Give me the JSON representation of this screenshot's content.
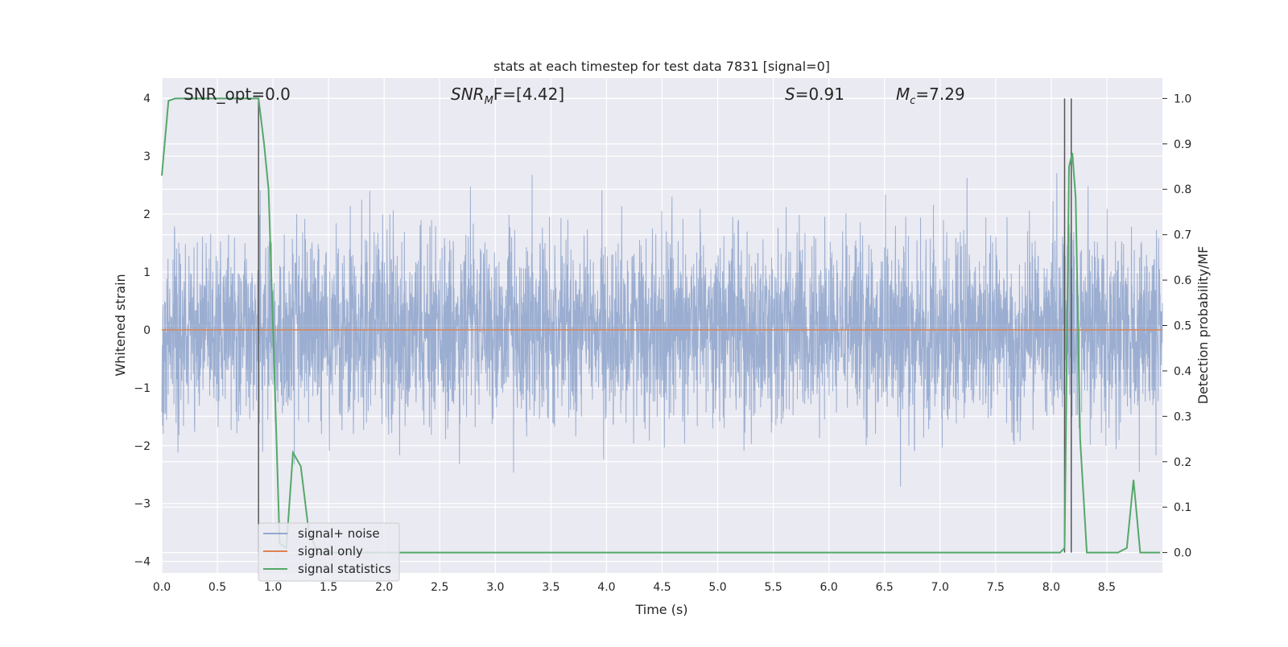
{
  "chart_data": {
    "type": "line",
    "title": "stats at each timestep for test data 7831 [signal=0]",
    "xlabel": "Time (s)",
    "ylabel_left": "Whitened strain",
    "ylabel_right": "Detection probability/MF",
    "xlim": [
      0.0,
      9.0
    ],
    "ylim_left": [
      -4.2,
      4.35
    ],
    "ylim_right": [
      -0.045,
      1.045
    ],
    "x_ticks": [
      0.0,
      0.5,
      1.0,
      1.5,
      2.0,
      2.5,
      3.0,
      3.5,
      4.0,
      4.5,
      5.0,
      5.5,
      6.0,
      6.5,
      7.0,
      7.5,
      8.0,
      8.5
    ],
    "x_tick_labels": [
      "0.0",
      "0.5",
      "1.0",
      "1.5",
      "2.0",
      "2.5",
      "3.0",
      "3.5",
      "4.0",
      "4.5",
      "5.0",
      "5.5",
      "6.0",
      "6.5",
      "7.0",
      "7.5",
      "8.0",
      "8.5"
    ],
    "y_left_ticks": [
      4,
      3,
      2,
      1,
      0,
      -1,
      -2,
      -3,
      -4
    ],
    "y_left_tick_labels": [
      "4",
      "3",
      "2",
      "1",
      "0",
      "−1",
      "−2",
      "−3",
      "−4"
    ],
    "y_right_ticks": [
      1.0,
      0.9,
      0.8,
      0.7,
      0.6,
      0.5,
      0.4,
      0.3,
      0.2,
      0.1,
      0.0
    ],
    "y_right_tick_labels": [
      "1.0",
      "0.9",
      "0.8",
      "0.7",
      "0.6",
      "0.5",
      "0.4",
      "0.3",
      "0.2",
      "0.1",
      "0.0"
    ],
    "grid": true,
    "legend_position": "lower-left",
    "annotations": {
      "snr_opt": "SNR_opt=0.0",
      "snr_mf_prefix": "SNR",
      "snr_mf_sub": "M",
      "snr_mf_suffix": "F=[4.42]",
      "s_var": "S",
      "s_val": "=0.91",
      "mc_var": "M",
      "mc_sub": "c",
      "mc_val": "=7.29"
    },
    "vertical_markers_x": [
      0.87,
      8.12,
      8.18
    ],
    "series": [
      {
        "name": "signal+ noise",
        "color": "#4c72b0",
        "axis": "left",
        "kind": "noise",
        "typical_amplitude": 1.5,
        "peak_min": -3.7,
        "peak_max": 3.9
      },
      {
        "name": "signal only",
        "color": "#dd8452",
        "axis": "left",
        "x": [
          0.0,
          9.0
        ],
        "y": [
          0.0,
          0.0
        ]
      },
      {
        "name": "signal statistics",
        "color": "#55a868",
        "axis": "right",
        "x": [
          0.0,
          0.06,
          0.12,
          0.2,
          0.3,
          0.5,
          0.7,
          0.87,
          0.92,
          0.96,
          1.0,
          1.06,
          1.12,
          1.18,
          1.25,
          1.32,
          1.4,
          2.0,
          3.0,
          4.0,
          5.0,
          6.0,
          7.0,
          8.0,
          8.08,
          8.12,
          8.16,
          8.19,
          8.22,
          8.26,
          8.32,
          8.4,
          8.6,
          8.68,
          8.74,
          8.8,
          8.9,
          8.98
        ],
        "y": [
          0.83,
          0.995,
          1.0,
          1.0,
          1.0,
          1.0,
          1.0,
          1.0,
          0.9,
          0.8,
          0.5,
          0.02,
          0.01,
          0.22,
          0.19,
          0.05,
          0.0,
          0.0,
          0.0,
          0.0,
          0.0,
          0.0,
          0.0,
          0.0,
          0.0,
          0.01,
          0.85,
          0.88,
          0.78,
          0.25,
          0.0,
          0.0,
          0.0,
          0.01,
          0.16,
          0.0,
          0.0,
          0.0
        ]
      }
    ]
  }
}
